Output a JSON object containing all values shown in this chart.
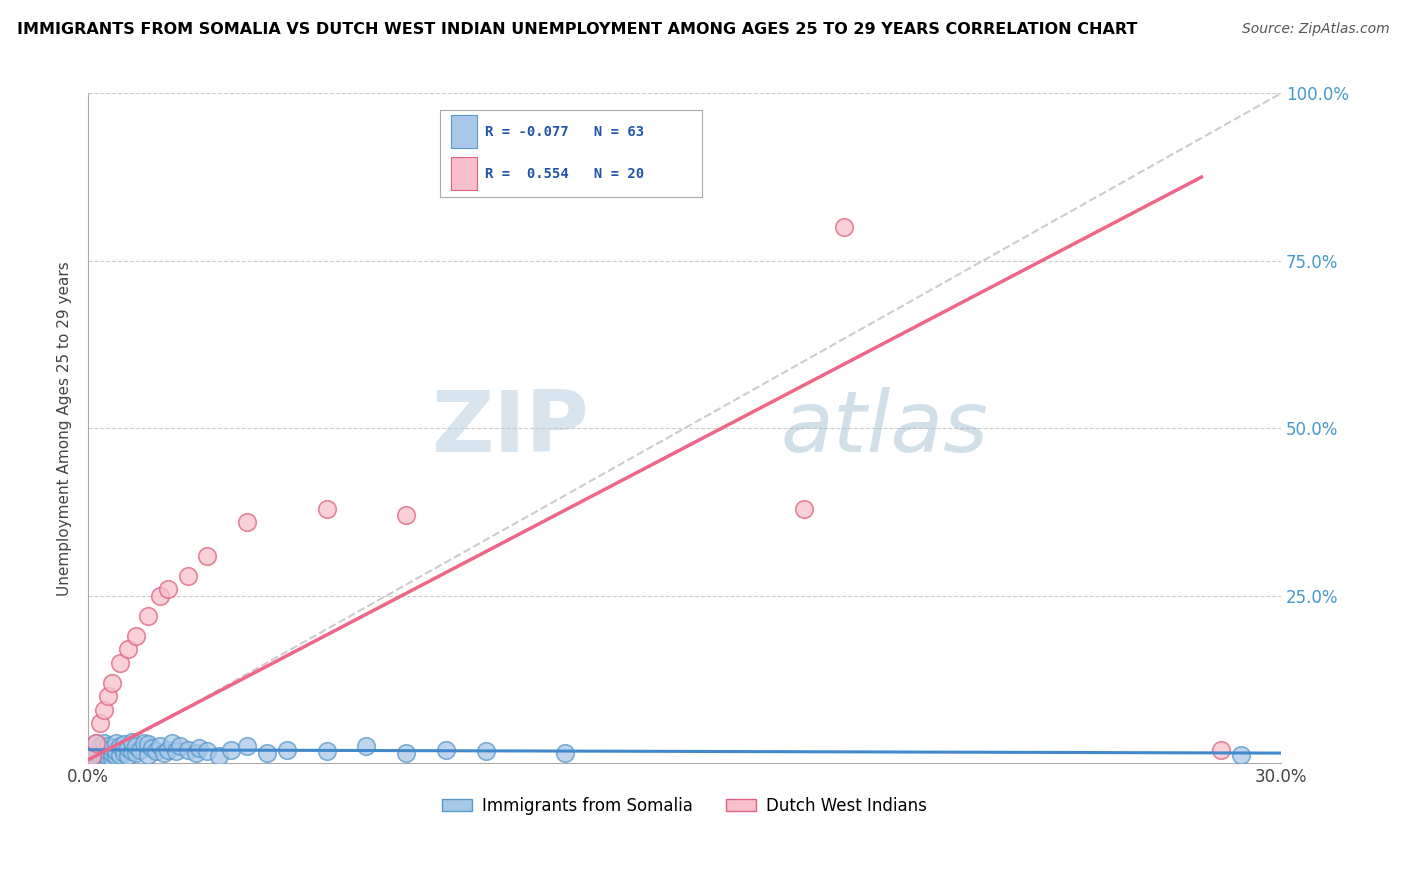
{
  "title": "IMMIGRANTS FROM SOMALIA VS DUTCH WEST INDIAN UNEMPLOYMENT AMONG AGES 25 TO 29 YEARS CORRELATION CHART",
  "source": "Source: ZipAtlas.com",
  "ylabel": "Unemployment Among Ages 25 to 29 years",
  "xlim": [
    0.0,
    0.3
  ],
  "ylim": [
    0.0,
    1.0
  ],
  "somalia_color": "#a8c8e8",
  "somalia_edge": "#5599cc",
  "dwi_color": "#f8c0cc",
  "dwi_edge": "#e06080",
  "trendline_somalia_color": "#4488cc",
  "trendline_dwi_color": "#ee6688",
  "diagonal_color": "#cccccc",
  "R_somalia": -0.077,
  "N_somalia": 63,
  "R_dwi": 0.554,
  "N_dwi": 20,
  "watermark_zip": "ZIP",
  "watermark_atlas": "atlas",
  "legend_label_somalia": "Immigrants from Somalia",
  "legend_label_dwi": "Dutch West Indians",
  "somalia_x": [
    0.001,
    0.001,
    0.001,
    0.002,
    0.002,
    0.002,
    0.002,
    0.003,
    0.003,
    0.003,
    0.003,
    0.004,
    0.004,
    0.004,
    0.004,
    0.005,
    0.005,
    0.005,
    0.005,
    0.006,
    0.006,
    0.006,
    0.007,
    0.007,
    0.007,
    0.008,
    0.008,
    0.009,
    0.009,
    0.01,
    0.01,
    0.011,
    0.011,
    0.012,
    0.012,
    0.013,
    0.014,
    0.015,
    0.015,
    0.016,
    0.017,
    0.018,
    0.019,
    0.02,
    0.021,
    0.022,
    0.023,
    0.025,
    0.027,
    0.028,
    0.03,
    0.033,
    0.036,
    0.04,
    0.045,
    0.05,
    0.06,
    0.07,
    0.08,
    0.09,
    0.1,
    0.12,
    0.29
  ],
  "somalia_y": [
    0.005,
    0.01,
    0.015,
    0.005,
    0.01,
    0.02,
    0.03,
    0.005,
    0.01,
    0.015,
    0.025,
    0.008,
    0.012,
    0.02,
    0.03,
    0.005,
    0.01,
    0.018,
    0.025,
    0.008,
    0.015,
    0.022,
    0.01,
    0.018,
    0.03,
    0.012,
    0.025,
    0.015,
    0.028,
    0.01,
    0.022,
    0.018,
    0.032,
    0.015,
    0.025,
    0.02,
    0.03,
    0.012,
    0.028,
    0.022,
    0.018,
    0.025,
    0.015,
    0.02,
    0.03,
    0.018,
    0.025,
    0.02,
    0.015,
    0.022,
    0.018,
    0.01,
    0.02,
    0.025,
    0.015,
    0.02,
    0.018,
    0.025,
    0.015,
    0.02,
    0.018,
    0.015,
    0.012
  ],
  "dwi_x": [
    0.001,
    0.002,
    0.003,
    0.004,
    0.005,
    0.006,
    0.008,
    0.01,
    0.012,
    0.015,
    0.018,
    0.02,
    0.025,
    0.03,
    0.04,
    0.06,
    0.08,
    0.18,
    0.19,
    0.285
  ],
  "dwi_y": [
    0.01,
    0.03,
    0.06,
    0.08,
    0.1,
    0.12,
    0.15,
    0.17,
    0.19,
    0.22,
    0.25,
    0.26,
    0.28,
    0.31,
    0.36,
    0.38,
    0.37,
    0.38,
    0.8,
    0.02
  ],
  "trendline_somalia_x0": 0.0,
  "trendline_somalia_x1": 0.3,
  "trendline_somalia_y0": 0.02,
  "trendline_somalia_y1": 0.015,
  "trendline_dwi_x0": 0.0,
  "trendline_dwi_x1": 0.28,
  "trendline_dwi_y0": 0.005,
  "trendline_dwi_y1": 0.875
}
